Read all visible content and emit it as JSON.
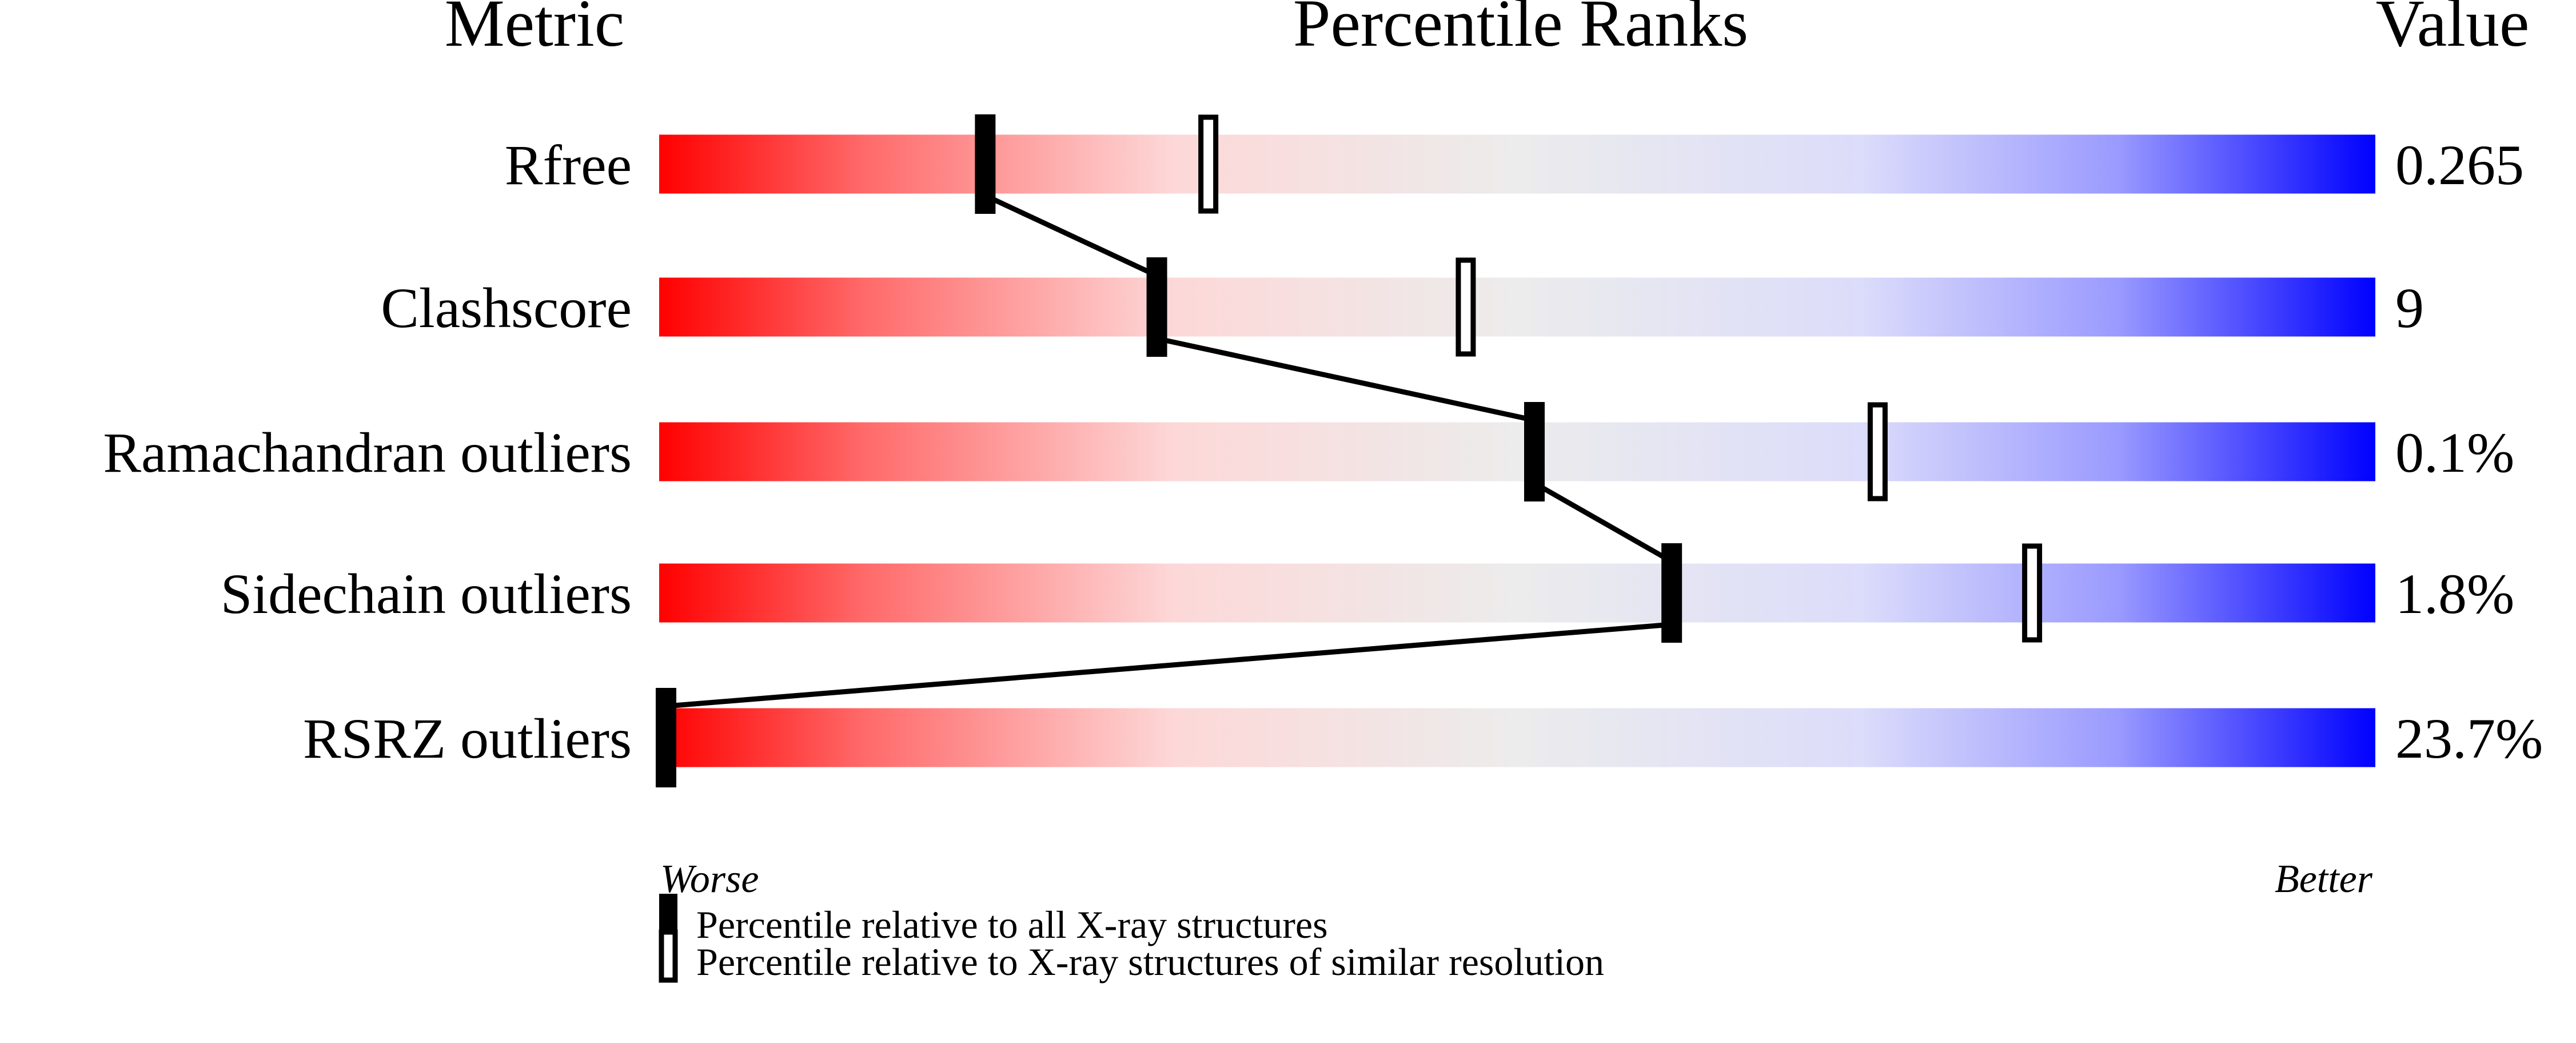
{
  "chart_data": {
    "type": "percentile-slider",
    "headers": {
      "metric": "Metric",
      "ranks": "Percentile Ranks",
      "value": "Value"
    },
    "xlim": [
      0,
      100
    ],
    "axis_labels": {
      "left": "Worse",
      "right": "Better"
    },
    "colors": {
      "worse": "#ff0000",
      "mid": "#eeeeee",
      "better": "#0000ff"
    },
    "rows": [
      {
        "metric": "Rfree",
        "value": "0.265",
        "percentile_all": 19,
        "percentile_similar": 32
      },
      {
        "metric": "Clashscore",
        "value": "9",
        "percentile_all": 29,
        "percentile_similar": 47
      },
      {
        "metric": "Ramachandran outliers",
        "value": "0.1%",
        "percentile_all": 51,
        "percentile_similar": 71
      },
      {
        "metric": "Sidechain outliers",
        "value": "1.8%",
        "percentile_all": 59,
        "percentile_similar": 80
      },
      {
        "metric": "RSRZ outliers",
        "value": "23.7%",
        "percentile_all": 0,
        "percentile_similar": null
      }
    ],
    "legend": [
      {
        "marker": "filled",
        "label": "Percentile relative to all X-ray structures"
      },
      {
        "marker": "open",
        "label": "Percentile relative to X-ray structures of similar resolution"
      }
    ]
  }
}
